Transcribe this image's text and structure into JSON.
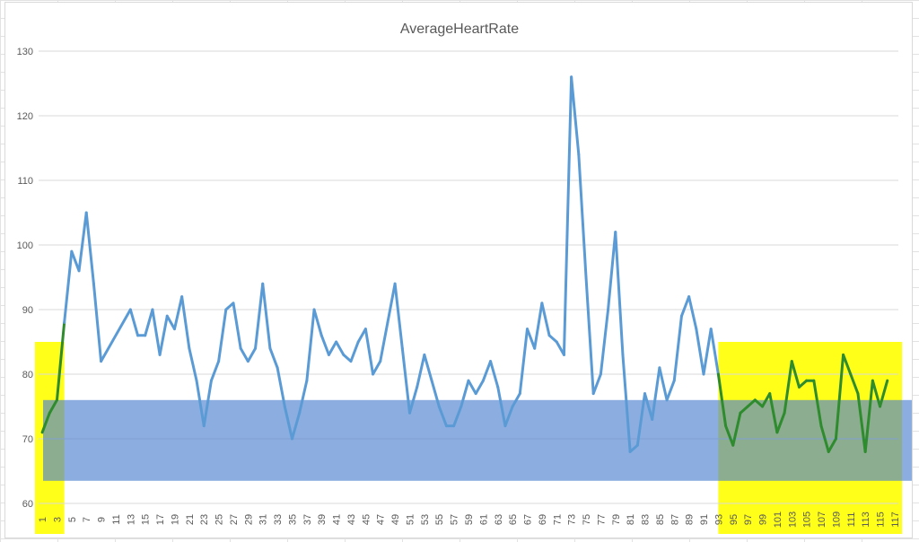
{
  "chart_data": {
    "type": "line",
    "title": "AverageHeartRate",
    "xlabel": "",
    "ylabel": "",
    "ylim": [
      60,
      130
    ],
    "yticks": [
      60,
      70,
      80,
      90,
      100,
      110,
      120,
      130
    ],
    "xrange": [
      1,
      117
    ],
    "xtick_step": 2,
    "grid": true,
    "legend": "none",
    "series": [
      {
        "color": "#5b9bd5",
        "x": [
          1,
          2,
          3,
          4,
          5,
          6,
          7,
          8,
          9,
          13,
          14,
          15,
          16,
          17,
          18,
          19,
          20,
          21,
          22,
          23,
          24,
          25,
          26,
          27,
          28,
          29,
          30,
          31,
          32,
          33,
          34,
          35,
          36,
          37,
          38,
          39,
          40,
          41,
          42,
          43,
          44,
          45,
          46,
          47,
          48,
          49,
          50,
          51,
          52,
          53,
          54,
          55,
          56,
          57,
          58,
          59,
          60,
          61,
          62,
          63,
          64,
          65,
          66,
          67,
          68,
          69,
          70,
          71,
          72,
          73,
          74,
          75,
          76,
          77,
          78,
          79,
          80,
          81,
          82,
          83,
          84,
          85,
          86,
          87,
          88,
          89,
          90,
          91,
          92,
          93,
          94,
          95,
          96,
          97,
          98,
          99,
          100,
          101,
          102,
          103,
          104,
          105,
          106,
          107,
          108,
          109,
          110,
          111,
          112,
          113,
          114,
          115,
          116
        ],
        "values": [
          71,
          74,
          76,
          88,
          99,
          96,
          105,
          94,
          82,
          90,
          86,
          86,
          90,
          83,
          89,
          87,
          92,
          84,
          79,
          72,
          79,
          82,
          90,
          91,
          84,
          82,
          84,
          94,
          84,
          81,
          75,
          70,
          74,
          79,
          90,
          86,
          83,
          85,
          83,
          82,
          85,
          87,
          80,
          82,
          88,
          94,
          84,
          74,
          78,
          83,
          79,
          75,
          72,
          72,
          75,
          79,
          77,
          79,
          82,
          78,
          72,
          75,
          77,
          87,
          84,
          91,
          86,
          85,
          83,
          126,
          114,
          95,
          77,
          80,
          90,
          102,
          83,
          68,
          69,
          77,
          73,
          81,
          76,
          79,
          89,
          92,
          87,
          80,
          87,
          80,
          72,
          69,
          74,
          75,
          76,
          75,
          77,
          71,
          74,
          82,
          78,
          79,
          79,
          72,
          68,
          70,
          83,
          80,
          77,
          68,
          79,
          75,
          79
        ]
      }
    ],
    "highlight_band": {
      "y_from": 63.5,
      "y_to": 76,
      "color": "#4f81d0"
    },
    "highlight_regions": [
      {
        "x_from": 0,
        "x_to": 4,
        "color": "#ffff00"
      },
      {
        "x_from": 93,
        "x_to": 118,
        "color": "#ffff00"
      }
    ],
    "highlight_line_color": "#2e8b2e"
  }
}
